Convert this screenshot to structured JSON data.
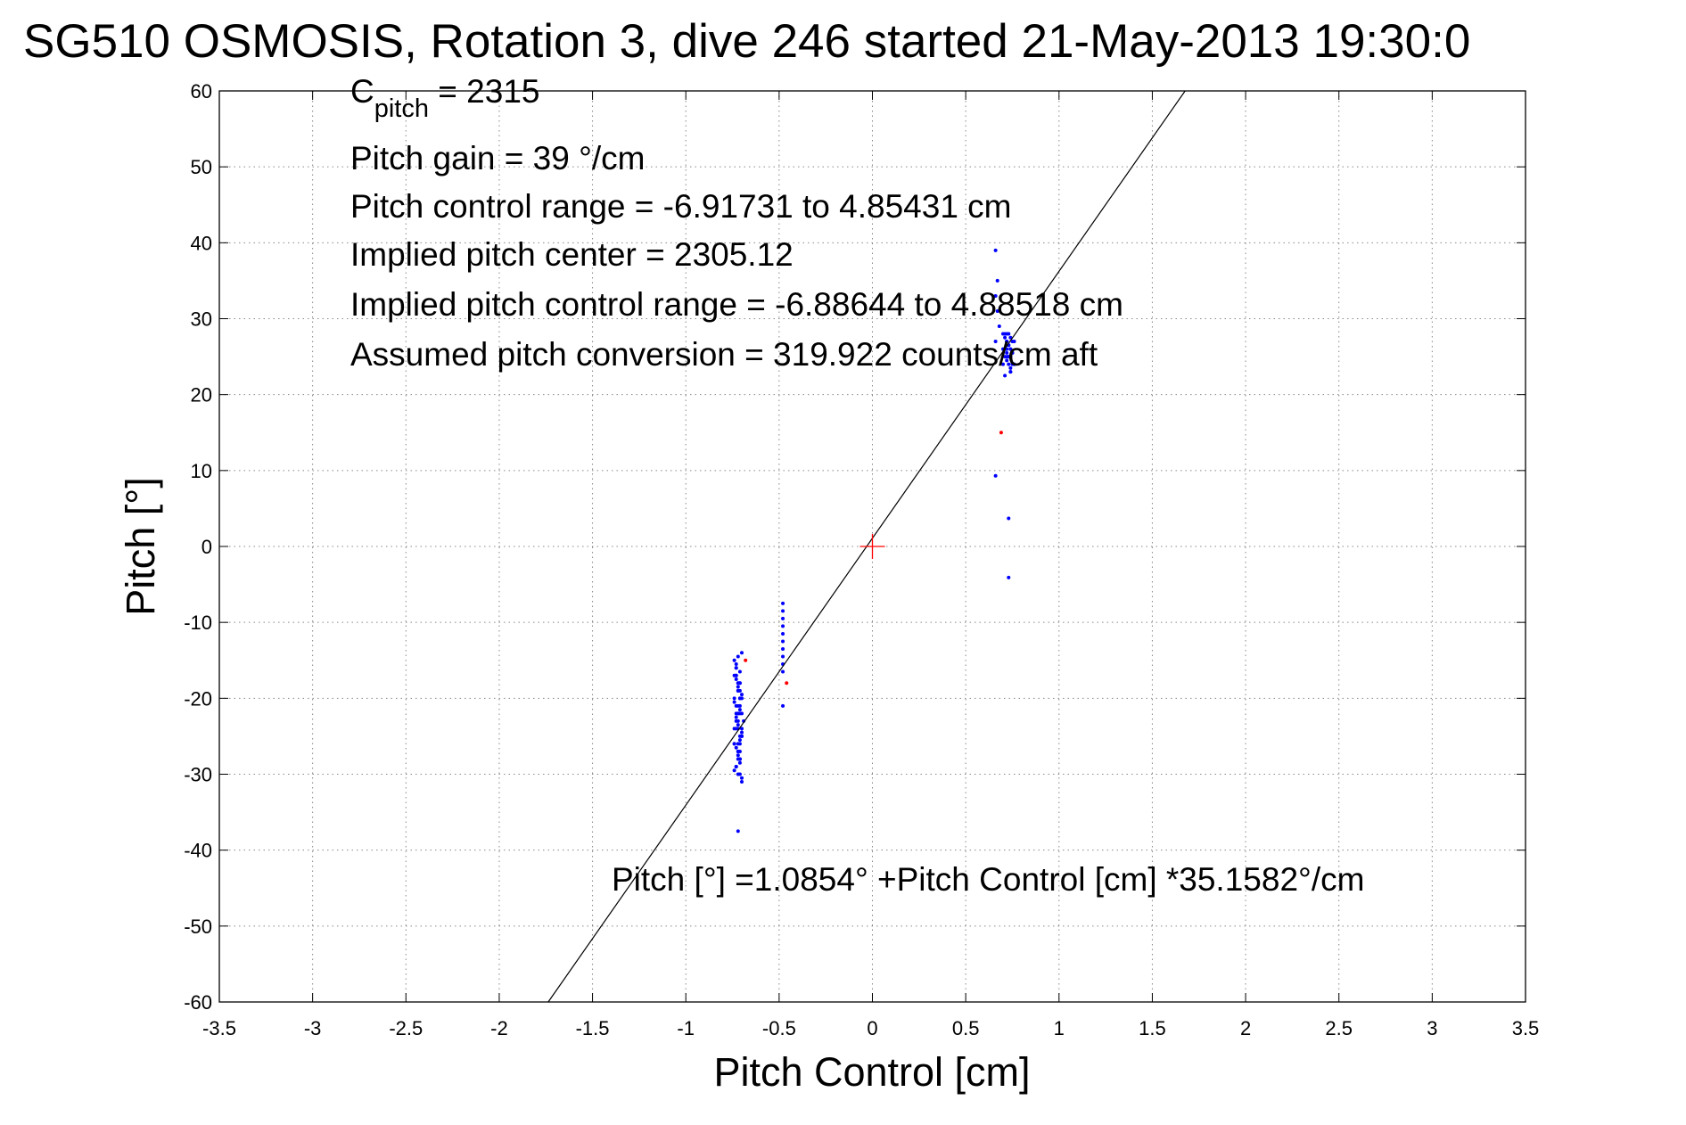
{
  "chart_data": {
    "type": "scatter",
    "title": "SG510 OSMOSIS, Rotation 3, dive 246 started 21-May-2013 19:30:0",
    "xlabel": "Pitch Control [cm]",
    "ylabel": "Pitch [°]",
    "xlim": [
      -3.5,
      3.5
    ],
    "ylim": [
      -60,
      60
    ],
    "xticks": [
      -3.5,
      -3,
      -2.5,
      -2,
      -1.5,
      -1,
      -0.5,
      0,
      0.5,
      1,
      1.5,
      2,
      2.5,
      3,
      3.5
    ],
    "yticks": [
      -60,
      -50,
      -40,
      -30,
      -20,
      -10,
      0,
      10,
      20,
      30,
      40,
      50,
      60
    ],
    "grid": true,
    "annotations": {
      "cpitch_c": "C",
      "cpitch_sub": "pitch",
      "cpitch_value": " = 2315",
      "pitch_gain": "Pitch gain = 39 °/cm",
      "pitch_control_range": "Pitch control range = -6.91731 to 4.85431 cm",
      "implied_center": "Implied pitch center = 2305.12",
      "implied_range": "Implied pitch control range = -6.88644 to 4.88518 cm",
      "assumed_conversion": "Assumed pitch conversion = 319.922 counts/cm aft",
      "fit_equation": "Pitch [°] =1.0854° +Pitch Control [cm] *35.1582°/cm"
    },
    "fit_line": {
      "intercept": 1.0854,
      "slope": 35.1582,
      "color": "#000000"
    },
    "center_marker": {
      "x": 0,
      "y": 0,
      "color": "#ff0000"
    },
    "series": [
      {
        "color": "#0000ff",
        "x": [
          -0.73,
          -0.73,
          -0.72,
          -0.71,
          -0.74,
          -0.72,
          -0.71,
          -0.73,
          -0.72,
          -0.7,
          -0.74,
          -0.72,
          -0.71,
          -0.73,
          -0.72,
          -0.7,
          -0.74,
          -0.71,
          -0.73,
          -0.72,
          -0.7,
          -0.74,
          -0.71,
          -0.73,
          -0.72,
          -0.7,
          -0.71,
          -0.73,
          -0.72,
          -0.71,
          -0.74,
          -0.7,
          -0.72,
          -0.73,
          -0.71,
          -0.72,
          -0.7,
          -0.74,
          -0.71,
          -0.73,
          -0.72,
          -0.7,
          -0.71,
          -0.73,
          -0.72,
          -0.74,
          -0.71,
          -0.7,
          -0.72,
          -0.73,
          -0.71,
          -0.72,
          -0.71,
          -0.73,
          -0.72,
          -0.71,
          -0.7,
          -0.74,
          -0.72,
          -0.71,
          -0.73,
          -0.72,
          -0.71,
          -0.69,
          -0.71,
          -0.72,
          -0.7,
          -0.71,
          -0.73,
          -0.72,
          -0.48,
          -0.48,
          -0.48,
          -0.48,
          -0.48,
          -0.48,
          -0.48,
          -0.48,
          -0.48,
          -0.48,
          -0.48,
          0.66,
          0.67,
          0.66,
          0.67,
          0.68,
          0.66,
          0.7,
          0.72,
          0.74,
          0.71,
          0.73,
          0.75,
          0.72,
          0.74,
          0.76,
          0.71,
          0.73,
          0.75,
          0.72,
          0.74,
          0.76,
          0.7,
          0.73,
          0.75,
          0.72,
          0.74,
          0.71,
          0.73,
          0.75,
          0.72,
          0.7,
          0.74,
          0.73,
          0.71,
          0.72,
          0.74,
          0.73,
          0.72,
          0.71,
          0.74,
          0.72,
          0.66,
          0.73,
          0.73
        ],
        "y": [
          -16,
          -17,
          -18,
          -19,
          -20,
          -21,
          -22,
          -23,
          -24,
          -25,
          -26,
          -27,
          -28,
          -29,
          -30,
          -31,
          -15,
          -16.5,
          -17.5,
          -18.5,
          -19.5,
          -20.5,
          -21.5,
          -22.5,
          -23.5,
          -24.5,
          -25.5,
          -26.5,
          -27.5,
          -28.5,
          -29.5,
          -30.5,
          -14.5,
          -15.5,
          -20,
          -22,
          -24,
          -26,
          -28,
          -21,
          -23,
          -25,
          -27,
          -29,
          -19,
          -17,
          -18,
          -20,
          -22,
          -24,
          -26,
          -28,
          -30,
          -16,
          -18,
          -20,
          -22,
          -24,
          -26,
          -28,
          -17,
          -19,
          -21,
          -23,
          -25,
          -27,
          -14,
          -18,
          -22,
          -37.5,
          -7.5,
          -8.5,
          -9.5,
          -10.5,
          -11.5,
          -12.5,
          -13.5,
          -14.5,
          -15.5,
          -16.5,
          -21,
          39,
          35,
          33,
          31,
          29,
          27,
          28,
          27,
          26,
          25,
          28,
          27,
          26,
          25,
          24,
          27.5,
          26.5,
          25.5,
          24.5,
          23.5,
          27,
          26,
          25,
          24,
          28,
          23,
          22.5,
          26.5,
          25.5,
          27,
          24,
          26,
          25,
          28,
          27,
          23,
          24,
          25.5,
          26,
          27.5,
          25,
          9.3,
          3.7,
          -4.1
        ]
      },
      {
        "color": "#ff0000",
        "x": [
          -0.68,
          -0.46,
          0.69
        ],
        "y": [
          -15,
          -18,
          15
        ]
      }
    ]
  }
}
